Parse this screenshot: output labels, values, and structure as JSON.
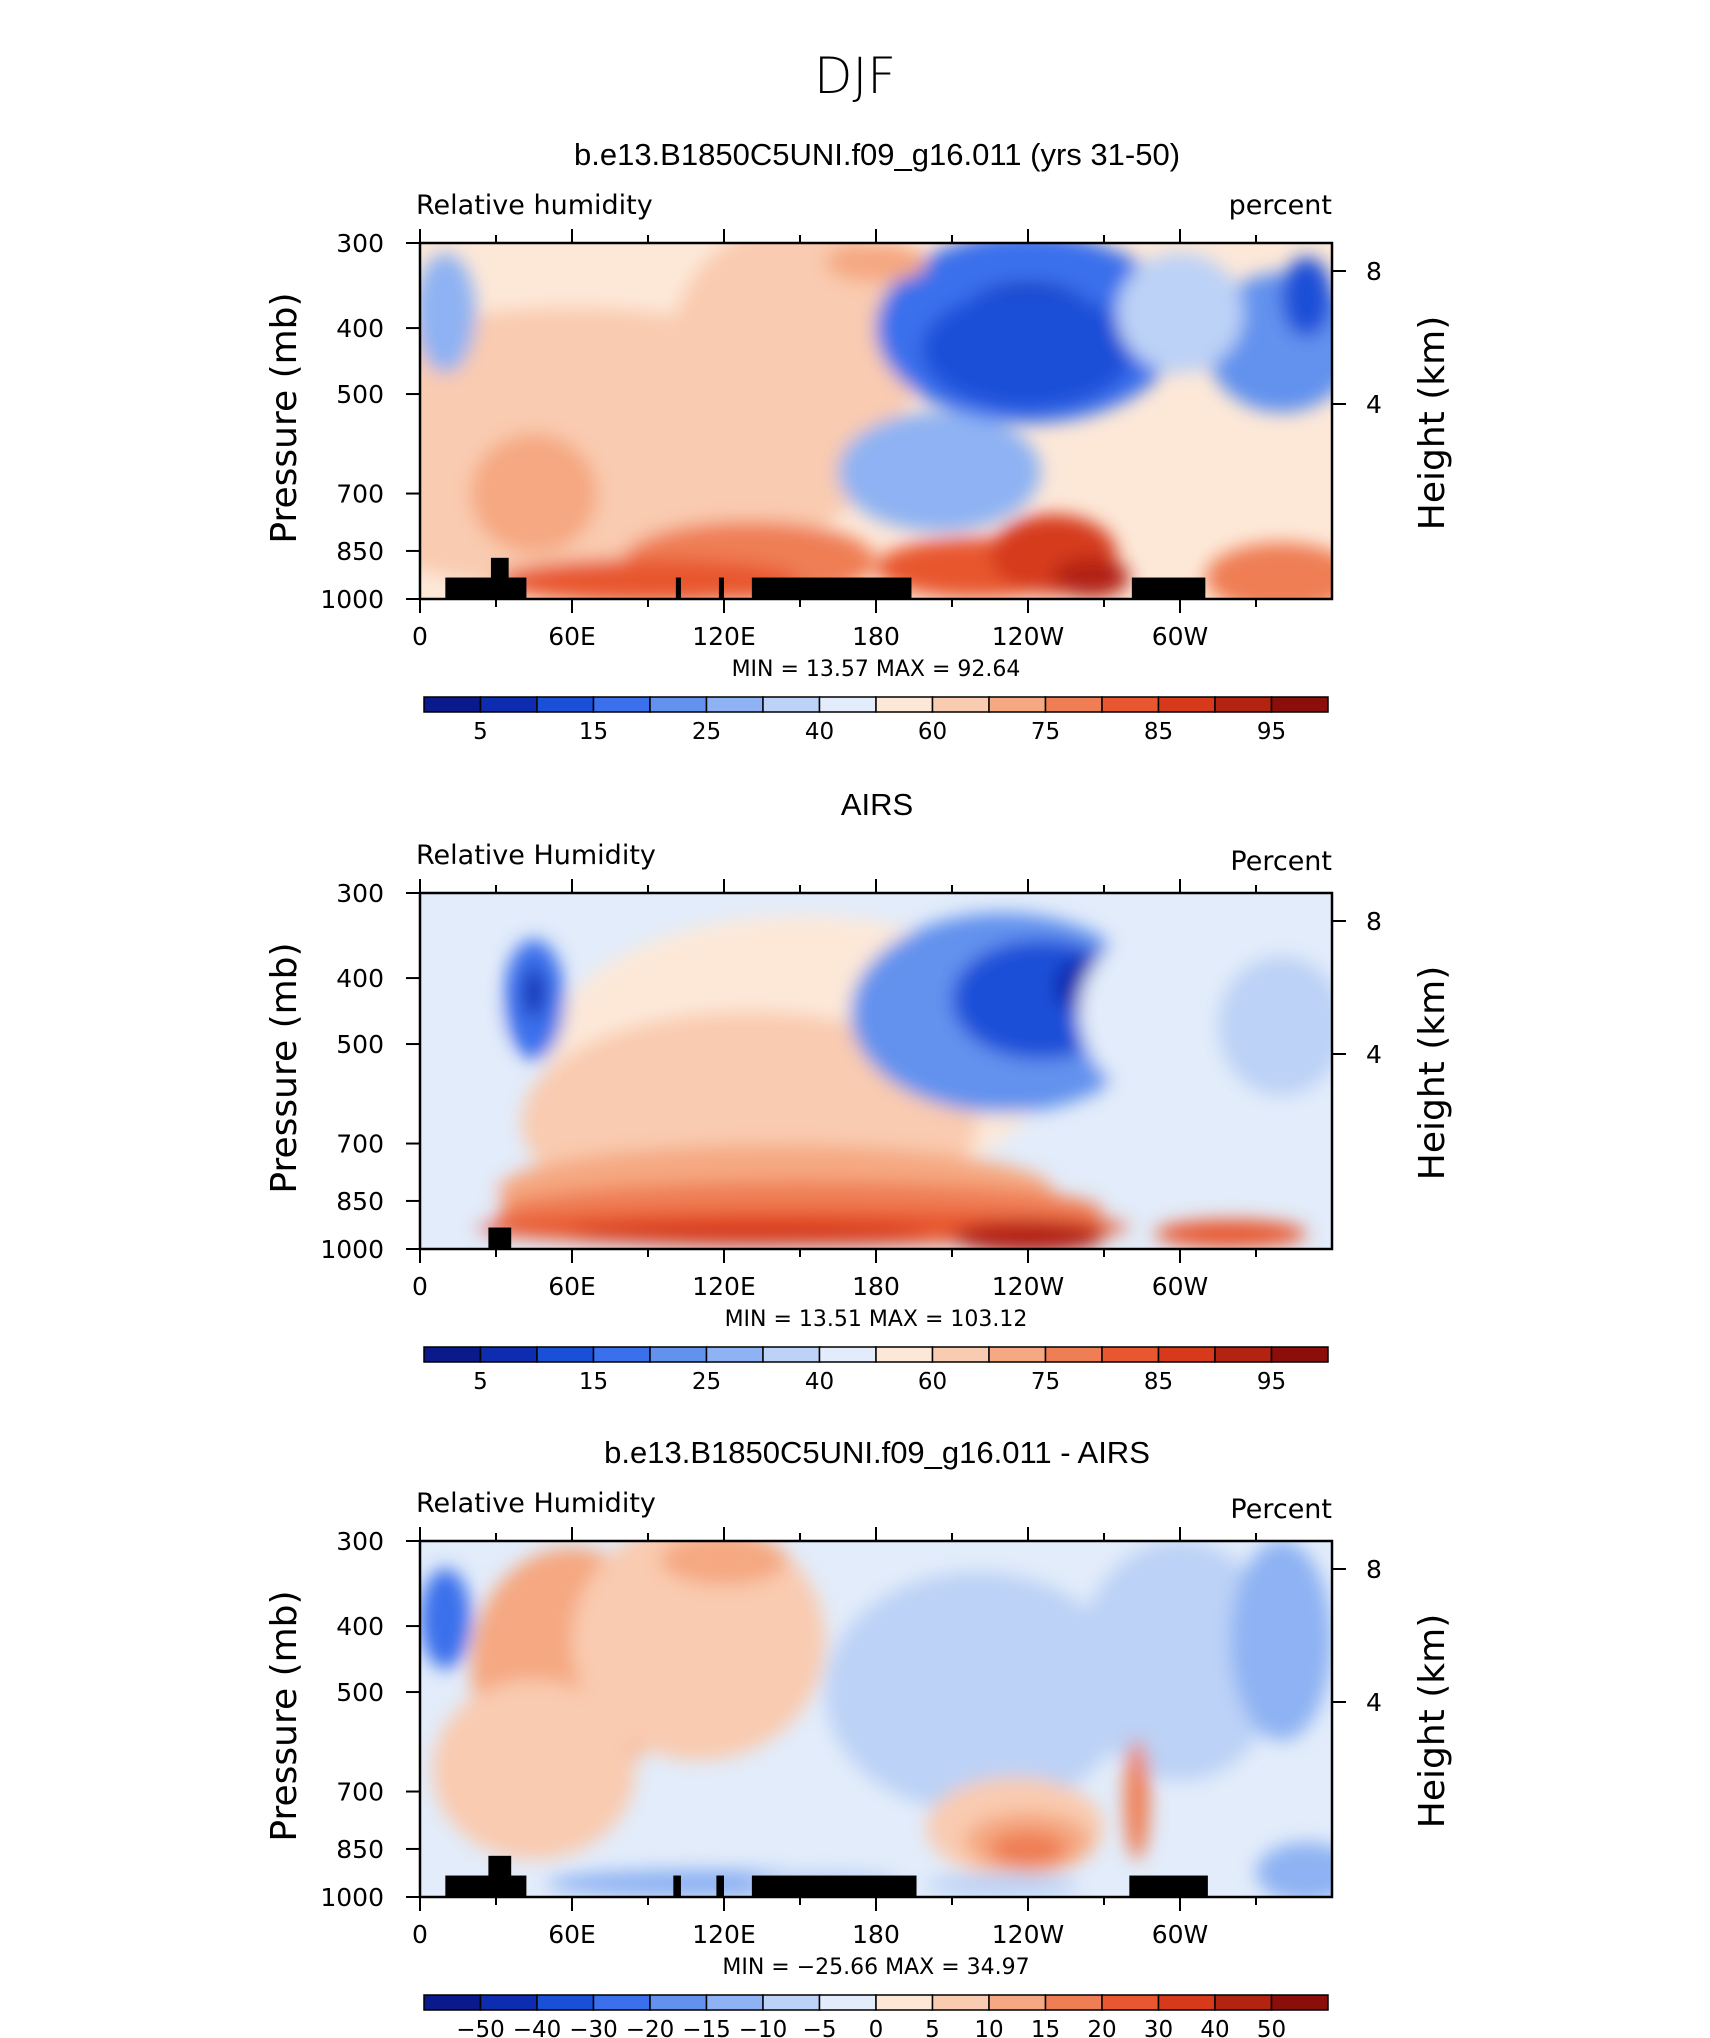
{
  "figure": {
    "title": "DJF"
  },
  "chart_data": [
    {
      "type": "heatmap",
      "title": "b.e13.B1850C5UNI.f09_g16.011 (yrs 31-50)",
      "left_string": "Relative humidity",
      "right_string": "percent",
      "ylabel": "Pressure (mb)",
      "ylabel_right": "Height (km)",
      "x_ticks": [
        "0",
        "60E",
        "120E",
        "180",
        "120W",
        "60W"
      ],
      "y_ticks": [
        "300",
        "400",
        "500",
        "700",
        "850",
        "1000"
      ],
      "y2_ticks": [
        "8",
        "4"
      ],
      "stats": "MIN =   13.57   MAX =   92.64",
      "colorbar_labels": [
        "5",
        "15",
        "25",
        "40",
        "60",
        "75",
        "85",
        "95"
      ],
      "colorbar_colors": [
        "#0a1a8c",
        "#0d2cb0",
        "#1a4fd8",
        "#3a70ec",
        "#6292ee",
        "#8eb2f3",
        "#bcd2f6",
        "#e2ecfa",
        "#fde8d8",
        "#f9cbb0",
        "#f5a881",
        "#ef7e55",
        "#e8572f",
        "#d63a1a",
        "#b22312",
        "#8b0e0a"
      ],
      "summary": {
        "min": 13.57,
        "max": 92.64
      }
    },
    {
      "type": "heatmap",
      "title": "AIRS",
      "left_string": "Relative Humidity",
      "right_string": "Percent",
      "ylabel": "Pressure (mb)",
      "ylabel_right": "Height (km)",
      "x_ticks": [
        "0",
        "60E",
        "120E",
        "180",
        "120W",
        "60W"
      ],
      "y_ticks": [
        "300",
        "400",
        "500",
        "700",
        "850",
        "1000"
      ],
      "y2_ticks": [
        "8",
        "4"
      ],
      "stats": "MIN =   13.51   MAX = 103.12",
      "colorbar_labels": [
        "5",
        "15",
        "25",
        "40",
        "60",
        "75",
        "85",
        "95"
      ],
      "colorbar_colors": [
        "#0a1a8c",
        "#0d2cb0",
        "#1a4fd8",
        "#3a70ec",
        "#6292ee",
        "#8eb2f3",
        "#bcd2f6",
        "#e2ecfa",
        "#fde8d8",
        "#f9cbb0",
        "#f5a881",
        "#ef7e55",
        "#e8572f",
        "#d63a1a",
        "#b22312",
        "#8b0e0a"
      ],
      "summary": {
        "min": 13.51,
        "max": 103.12
      }
    },
    {
      "type": "heatmap",
      "title": "b.e13.B1850C5UNI.f09_g16.011 - AIRS",
      "left_string": "Relative Humidity",
      "right_string": "Percent",
      "ylabel": "Pressure (mb)",
      "ylabel_right": "Height (km)",
      "x_ticks": [
        "0",
        "60E",
        "120E",
        "180",
        "120W",
        "60W"
      ],
      "y_ticks": [
        "300",
        "400",
        "500",
        "700",
        "850",
        "1000"
      ],
      "y2_ticks": [
        "8",
        "4"
      ],
      "stats": "MIN = −25.66   MAX =   34.97",
      "colorbar_labels": [
        "−50",
        "−40",
        "−30",
        "−20",
        "−15",
        "−10",
        "−5",
        "0",
        "5",
        "10",
        "15",
        "20",
        "30",
        "40",
        "50"
      ],
      "colorbar_colors": [
        "#0a1a8c",
        "#0d2cb0",
        "#1a4fd8",
        "#3a70ec",
        "#6292ee",
        "#8eb2f3",
        "#bcd2f6",
        "#e2ecfa",
        "#fde8d8",
        "#f9cbb0",
        "#f5a881",
        "#ef7e55",
        "#e8572f",
        "#d63a1a",
        "#b22312",
        "#8b0e0a"
      ],
      "summary": {
        "min": -25.66,
        "max": 34.97
      }
    }
  ]
}
